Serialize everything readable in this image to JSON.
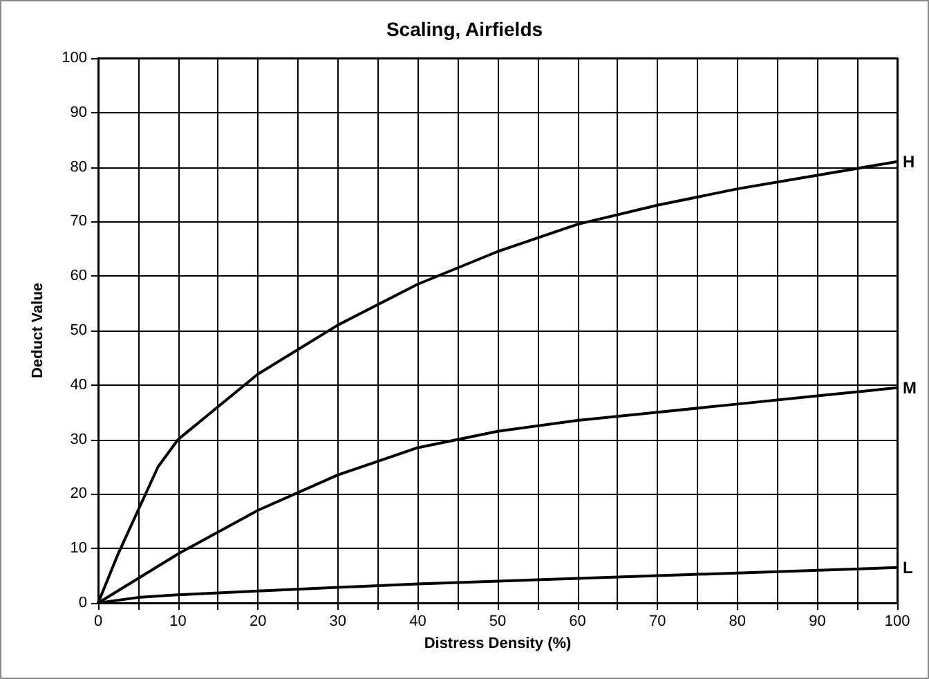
{
  "chart_data": {
    "type": "line",
    "title": "Scaling, Airfields",
    "xlabel": "Distress Density (%)",
    "ylabel": "Deduct Value",
    "xlim": [
      0,
      100
    ],
    "ylim": [
      0,
      100
    ],
    "xticks": [
      0,
      {
        "value": 5,
        "label": null
      },
      10,
      {
        "value": 15,
        "label": null
      },
      20,
      {
        "value": 25,
        "label": null
      },
      30,
      {
        "value": 35,
        "label": null
      },
      40,
      {
        "value": 45,
        "label": null
      },
      50,
      {
        "value": 55,
        "label": null
      },
      60,
      {
        "value": 65,
        "label": null
      },
      70,
      {
        "value": 75,
        "label": null
      },
      80,
      {
        "value": 85,
        "label": null
      },
      90,
      {
        "value": 95,
        "label": null
      },
      100
    ],
    "yticks": [
      0,
      10,
      20,
      30,
      40,
      50,
      60,
      70,
      80,
      90,
      100
    ],
    "grid": true,
    "legend": false,
    "marker": "none",
    "line_style": "solid",
    "series": [
      {
        "name": "H",
        "color": "#000000",
        "x": [
          0,
          2.5,
          5,
          7.5,
          10,
          15,
          20,
          30,
          40,
          50,
          60,
          70,
          80,
          90,
          100
        ],
        "values": [
          0,
          9,
          17,
          25,
          30,
          36,
          42,
          51,
          58.5,
          64.5,
          69.5,
          73,
          76,
          78.5,
          81
        ]
      },
      {
        "name": "M",
        "color": "#000000",
        "x": [
          0,
          10,
          20,
          30,
          40,
          50,
          60,
          70,
          80,
          90,
          100
        ],
        "values": [
          0,
          9,
          17,
          23.5,
          28.5,
          31.5,
          33.5,
          35,
          36.5,
          38,
          39.5
        ]
      },
      {
        "name": "L",
        "color": "#000000",
        "x": [
          0,
          5,
          10,
          20,
          40,
          60,
          80,
          100
        ],
        "values": [
          0,
          1,
          1.5,
          2.2,
          3.5,
          4.5,
          5.5,
          6.5
        ]
      }
    ]
  }
}
